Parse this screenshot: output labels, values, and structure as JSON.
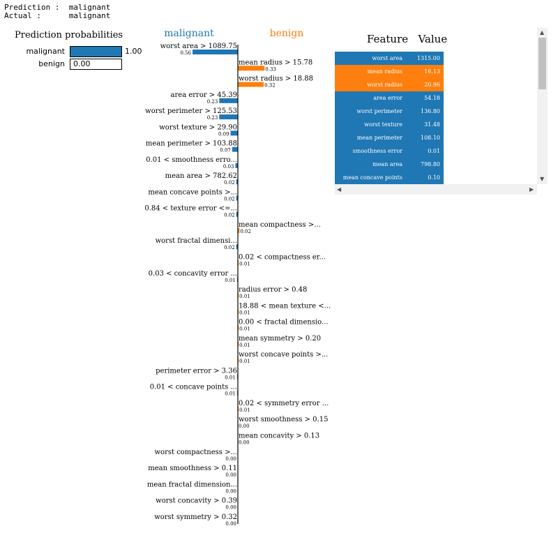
{
  "header": {
    "prediction_label": "Prediction :",
    "prediction_value": "malignant",
    "actual_label": "Actual :",
    "actual_value": "malignant"
  },
  "probabilities": {
    "title": "Prediction probabilities",
    "items": [
      {
        "label": "malignant",
        "value": 1.0,
        "display": "1.00",
        "color": "#1f77b4"
      },
      {
        "label": "benign",
        "value": 0.0,
        "display": "0.00",
        "color": "#ff7f0e"
      }
    ]
  },
  "chart_data": {
    "type": "bar",
    "orientation": "horizontal",
    "left_class": "malignant",
    "right_class": "benign",
    "colors": {
      "left": "#1f77b4",
      "right": "#ff7f0e"
    },
    "bars": [
      {
        "feature": "worst area > 1089.75",
        "weight": 0.56,
        "label": "0.56",
        "side": "left"
      },
      {
        "feature": "mean radius > 15.78",
        "weight": 0.33,
        "label": "0.33",
        "side": "right"
      },
      {
        "feature": "worst radius > 18.88",
        "weight": 0.32,
        "label": "0.32",
        "side": "right"
      },
      {
        "feature": "area error > 45.39",
        "weight": 0.23,
        "label": "0.23",
        "side": "left"
      },
      {
        "feature": "worst perimeter > 125.53",
        "weight": 0.23,
        "label": "0.23",
        "side": "left"
      },
      {
        "feature": "worst texture > 29.90",
        "weight": 0.09,
        "label": "0.09",
        "side": "left"
      },
      {
        "feature": "mean perimeter > 103.88",
        "weight": 0.07,
        "label": "0.07",
        "side": "left"
      },
      {
        "feature": "0.01 < smoothness erro...",
        "weight": 0.03,
        "label": "0.03",
        "side": "left"
      },
      {
        "feature": "mean area > 782.62",
        "weight": 0.02,
        "label": "0.02",
        "side": "left"
      },
      {
        "feature": "mean concave points >...",
        "weight": 0.02,
        "label": "0.02",
        "side": "left"
      },
      {
        "feature": "0.84 < texture error <=...",
        "weight": 0.02,
        "label": "0.02",
        "side": "left"
      },
      {
        "feature": "mean compactness >...",
        "weight": 0.02,
        "label": "0.02",
        "side": "right"
      },
      {
        "feature": "worst fractal dimensi...",
        "weight": 0.02,
        "label": "0.02",
        "side": "left"
      },
      {
        "feature": "0.02 < compactness er...",
        "weight": 0.01,
        "label": "0.01",
        "side": "right"
      },
      {
        "feature": "0.03 < concavity error ...",
        "weight": 0.01,
        "label": "0.01",
        "side": "left"
      },
      {
        "feature": "radius error > 0.48",
        "weight": 0.01,
        "label": "0.01",
        "side": "right"
      },
      {
        "feature": "18.88 < mean texture <...",
        "weight": 0.01,
        "label": "0.01",
        "side": "right"
      },
      {
        "feature": "0.00 < fractal dimensio...",
        "weight": 0.01,
        "label": "0.01",
        "side": "right"
      },
      {
        "feature": "mean symmetry > 0.20",
        "weight": 0.01,
        "label": "0.01",
        "side": "right"
      },
      {
        "feature": "worst concave points >...",
        "weight": 0.01,
        "label": "0.01",
        "side": "right"
      },
      {
        "feature": "perimeter error > 3.36",
        "weight": 0.01,
        "label": "0.01",
        "side": "left"
      },
      {
        "feature": "0.01 < concave points ...",
        "weight": 0.01,
        "label": "0.01",
        "side": "left"
      },
      {
        "feature": "0.02 < symmetry error ...",
        "weight": 0.01,
        "label": "0.01",
        "side": "right"
      },
      {
        "feature": "worst smoothness > 0.15",
        "weight": 0.0,
        "label": "0.00",
        "side": "right"
      },
      {
        "feature": "mean concavity > 0.13",
        "weight": 0.0,
        "label": "0.00",
        "side": "right"
      },
      {
        "feature": "worst compactness >...",
        "weight": 0.0,
        "label": "0.00",
        "side": "left"
      },
      {
        "feature": "mean smoothness > 0.11",
        "weight": 0.0,
        "label": "0.00",
        "side": "left"
      },
      {
        "feature": "mean fractal dimension...",
        "weight": 0.0,
        "label": "0.00",
        "side": "left"
      },
      {
        "feature": "worst concavity > 0.39",
        "weight": 0.0,
        "label": "0.00",
        "side": "left"
      },
      {
        "feature": "worst symmetry > 0.32",
        "weight": 0.0,
        "label": "0.00",
        "side": "left"
      }
    ]
  },
  "feature_table": {
    "col_feature": "Feature",
    "col_value": "Value",
    "rows": [
      {
        "feature": "worst area",
        "value": "1315.00",
        "side": "left"
      },
      {
        "feature": "mean radius",
        "value": "16.13",
        "side": "right"
      },
      {
        "feature": "worst radius",
        "value": "20.96",
        "side": "right"
      },
      {
        "feature": "area error",
        "value": "54.18",
        "side": "left"
      },
      {
        "feature": "worst perimeter",
        "value": "136.80",
        "side": "left"
      },
      {
        "feature": "worst texture",
        "value": "31.48",
        "side": "left"
      },
      {
        "feature": "mean perimeter",
        "value": "108.10",
        "side": "left"
      },
      {
        "feature": "smoothness error",
        "value": "0.01",
        "side": "left"
      },
      {
        "feature": "mean area",
        "value": "798.80",
        "side": "left"
      },
      {
        "feature": "mean concave points",
        "value": "0.10",
        "side": "left"
      }
    ]
  }
}
